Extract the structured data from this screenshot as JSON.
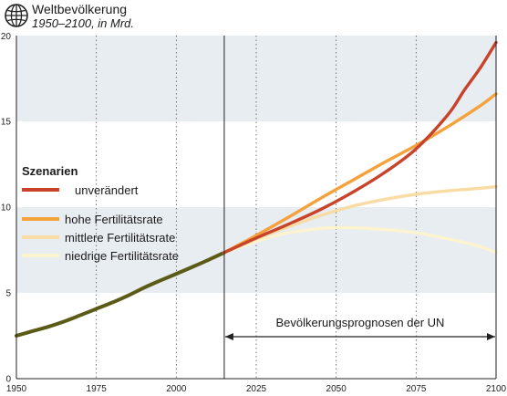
{
  "header": {
    "icon": "globe-icon",
    "title": "Weltbevölkerung",
    "subtitle": "1950–2100, in Mrd."
  },
  "chart_data": {
    "type": "line",
    "title": "Weltbevölkerung",
    "subtitle": "1950–2100, in Mrd.",
    "xlabel": "",
    "ylabel": "",
    "xlim": [
      1950,
      2100
    ],
    "ylim": [
      0,
      20
    ],
    "x_ticks": [
      1950,
      1975,
      2000,
      2025,
      2050,
      2075,
      2100
    ],
    "y_ticks": [
      0,
      5,
      10,
      15,
      20
    ],
    "bands": [
      [
        5,
        10
      ],
      [
        15,
        20
      ]
    ],
    "divider_year": 2015,
    "legend_position": "left",
    "legend_title": "Szenarien",
    "annotation": {
      "text": "Bevölkerungsprognosen der UN",
      "from": 2015,
      "to": 2100
    },
    "historical": {
      "color": "#5b5a16",
      "x": [
        1950,
        1955,
        1960,
        1965,
        1970,
        1975,
        1980,
        1985,
        1990,
        1995,
        2000,
        2005,
        2010,
        2015
      ],
      "y": [
        2.5,
        2.77,
        3.03,
        3.34,
        3.7,
        4.07,
        4.44,
        4.85,
        5.31,
        5.72,
        6.11,
        6.51,
        6.92,
        7.35
      ]
    },
    "series": [
      {
        "name": "unverändert",
        "color": "#c8432a",
        "x": [
          2015,
          2025,
          2035,
          2045,
          2055,
          2065,
          2075,
          2085,
          2090,
          2095,
          2100
        ],
        "y": [
          7.35,
          8.2,
          9.0,
          9.85,
          10.85,
          12.0,
          13.4,
          15.4,
          16.8,
          18.1,
          19.6
        ]
      },
      {
        "name": "hohe Fertilitätsrate",
        "color": "#f5a23c",
        "x": [
          2015,
          2025,
          2035,
          2045,
          2055,
          2065,
          2075,
          2085,
          2095,
          2100
        ],
        "y": [
          7.35,
          8.35,
          9.4,
          10.5,
          11.55,
          12.6,
          13.6,
          14.7,
          15.9,
          16.6
        ]
      },
      {
        "name": "mittlere Fertilitätsrate",
        "color": "#f9dba4",
        "x": [
          2015,
          2025,
          2035,
          2045,
          2055,
          2065,
          2075,
          2085,
          2095,
          2100
        ],
        "y": [
          7.35,
          8.15,
          8.85,
          9.5,
          10.05,
          10.45,
          10.75,
          10.95,
          11.1,
          11.2
        ]
      },
      {
        "name": "niedrige Fertilitätsrate",
        "color": "#fcf3cf",
        "x": [
          2015,
          2025,
          2035,
          2045,
          2050,
          2055,
          2065,
          2075,
          2085,
          2095,
          2100
        ],
        "y": [
          7.35,
          8.0,
          8.5,
          8.75,
          8.8,
          8.8,
          8.7,
          8.5,
          8.15,
          7.7,
          7.35
        ]
      }
    ]
  }
}
